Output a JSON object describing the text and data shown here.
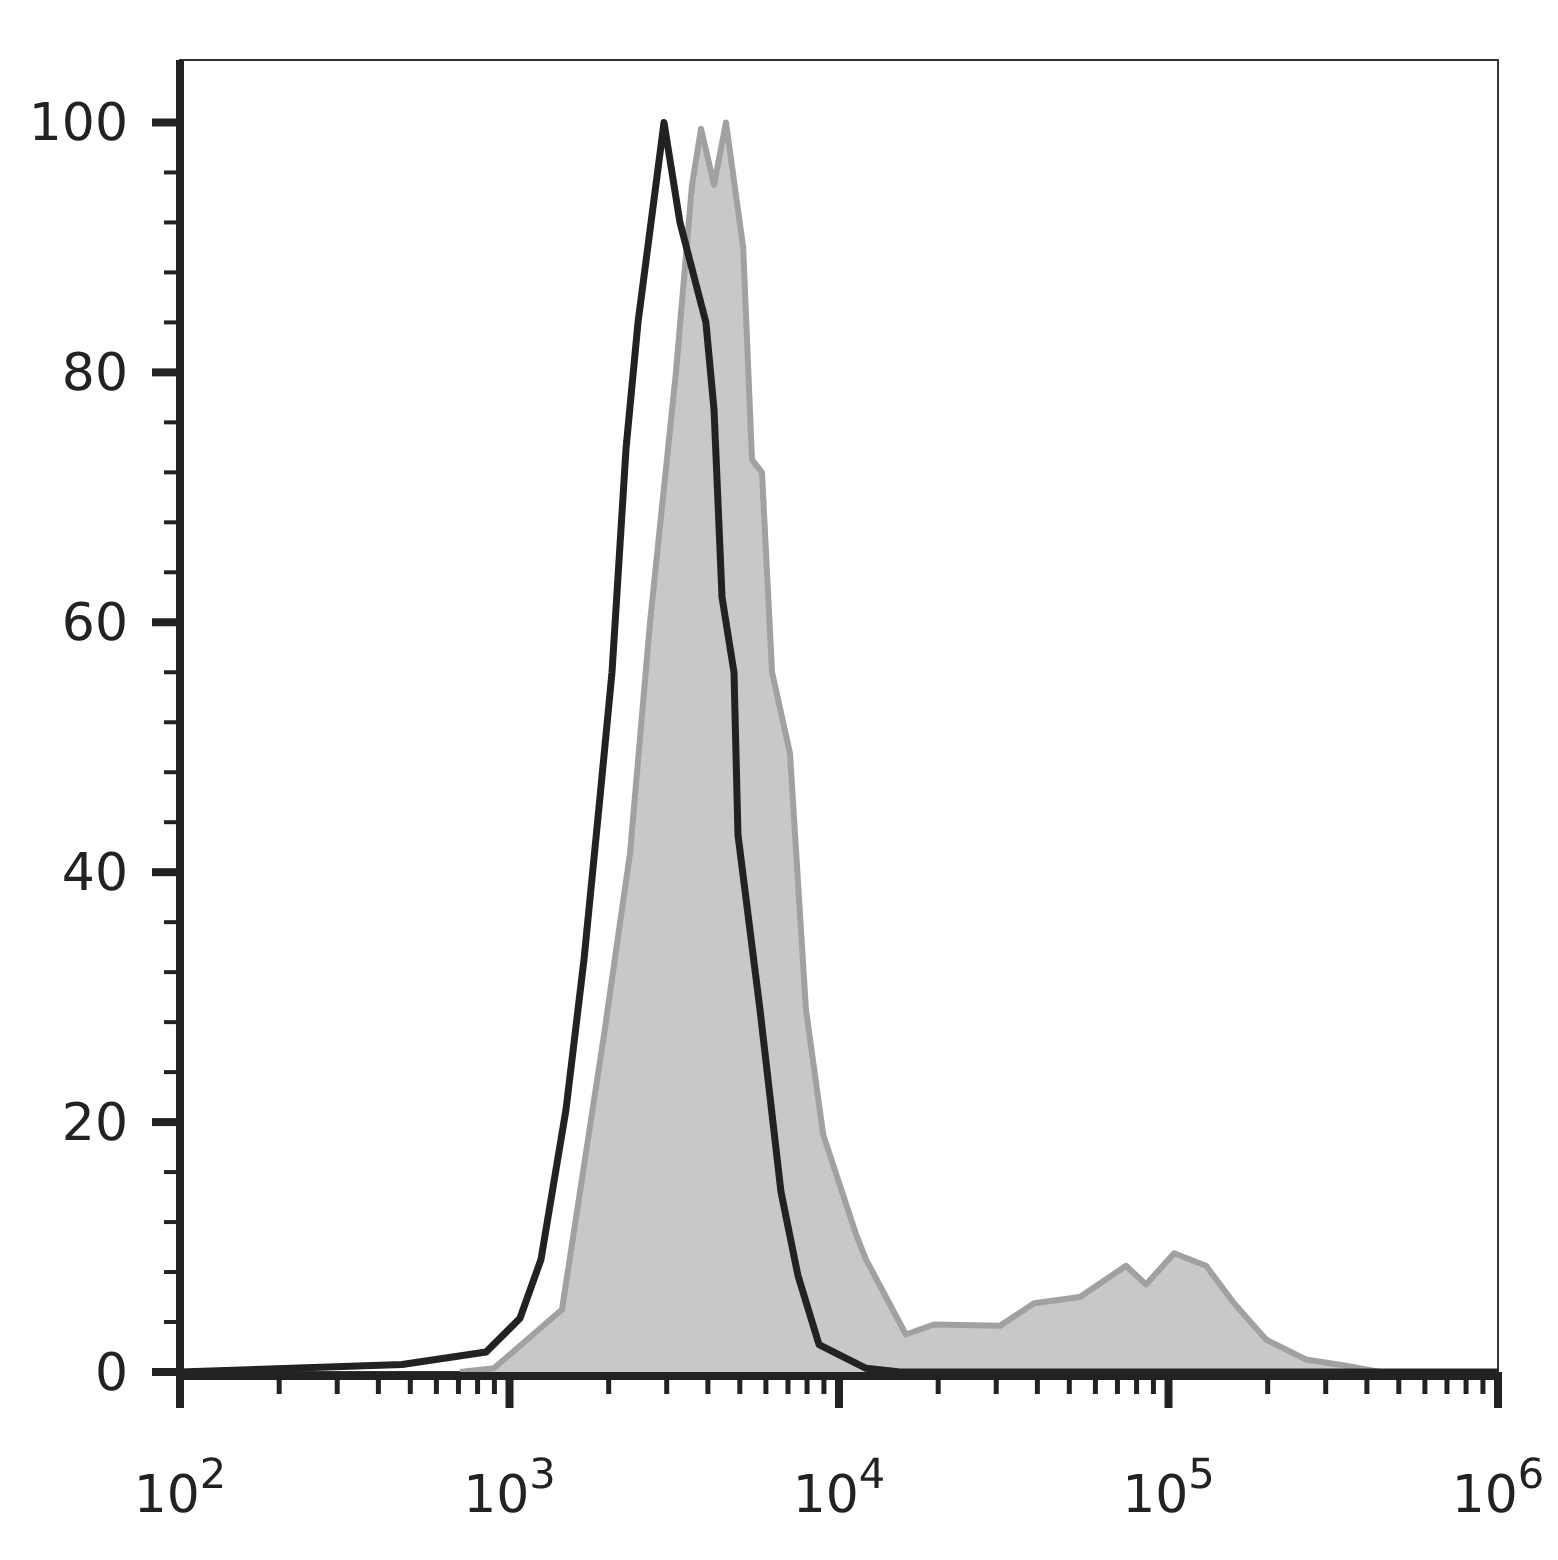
{
  "chart_data": {
    "type": "area",
    "log": "x",
    "grid": false,
    "xlim": [
      100,
      1000000
    ],
    "ylim": [
      0,
      105
    ],
    "xticks": [
      {
        "value": 100,
        "label": "10$^{2}$"
      },
      {
        "value": 200,
        "label": null
      },
      {
        "value": 300,
        "label": null
      },
      {
        "value": 400,
        "label": null
      },
      {
        "value": 500,
        "label": null
      },
      {
        "value": 600,
        "label": null
      },
      {
        "value": 700,
        "label": null
      },
      {
        "value": 800,
        "label": null
      },
      {
        "value": 900,
        "label": null
      },
      {
        "value": 1000,
        "label": "10$^{3}$"
      },
      {
        "value": 2000,
        "label": null
      },
      {
        "value": 3000,
        "label": null
      },
      {
        "value": 4000,
        "label": null
      },
      {
        "value": 5000,
        "label": null
      },
      {
        "value": 6000,
        "label": null
      },
      {
        "value": 7000,
        "label": null
      },
      {
        "value": 8000,
        "label": null
      },
      {
        "value": 9000,
        "label": null
      },
      {
        "value": 10000,
        "label": "10$^{4}$"
      },
      {
        "value": 20000,
        "label": null
      },
      {
        "value": 30000,
        "label": null
      },
      {
        "value": 40000,
        "label": null
      },
      {
        "value": 50000,
        "label": null
      },
      {
        "value": 60000,
        "label": null
      },
      {
        "value": 70000,
        "label": null
      },
      {
        "value": 80000,
        "label": null
      },
      {
        "value": 90000,
        "label": null
      },
      {
        "value": 100000,
        "label": "10$^{5}$"
      },
      {
        "value": 200000,
        "label": null
      },
      {
        "value": 300000,
        "label": null
      },
      {
        "value": 400000,
        "label": null
      },
      {
        "value": 500000,
        "label": null
      },
      {
        "value": 600000,
        "label": null
      },
      {
        "value": 700000,
        "label": null
      },
      {
        "value": 800000,
        "label": null
      },
      {
        "value": 900000,
        "label": null
      },
      {
        "value": 1000000,
        "label": "10$^{6}$"
      }
    ],
    "yticks": [
      0,
      {
        "value": 4,
        "label": null
      },
      {
        "value": 8,
        "label": null
      },
      {
        "value": 12,
        "label": null
      },
      {
        "value": 16,
        "label": null
      },
      20,
      {
        "value": 24,
        "label": null
      },
      {
        "value": 28,
        "label": null
      },
      {
        "value": 32,
        "label": null
      },
      {
        "value": 36,
        "label": null
      },
      40,
      {
        "value": 44,
        "label": null
      },
      {
        "value": 48,
        "label": null
      },
      {
        "value": 52,
        "label": null
      },
      {
        "value": 56,
        "label": null
      },
      60,
      {
        "value": 64,
        "label": null
      },
      {
        "value": 68,
        "label": null
      },
      {
        "value": 72,
        "label": null
      },
      {
        "value": 76,
        "label": null
      },
      80,
      {
        "value": 84,
        "label": null
      },
      {
        "value": 88,
        "label": null
      },
      {
        "value": 92,
        "label": null
      },
      {
        "value": 96,
        "label": null
      },
      100
    ],
    "series": [
      {
        "color": "#c8c8c8",
        "x": [
          708,
          897,
          1443,
          1936,
          2321,
          2670,
          3200,
          3580,
          3813,
          4176,
          4539,
          5119,
          5445,
          5837,
          6264,
          7101,
          7938,
          8956,
          11270,
          12080,
          15960,
          19410,
          30830,
          39080,
          53860,
          74270,
          85470,
          104000,
          130000,
          158100,
          197700,
          261300,
          345600,
          438500
        ],
        "values": [
          0,
          0.3,
          5,
          27,
          41.5,
          60,
          80,
          95,
          99.5,
          95,
          100,
          90,
          73,
          72,
          56,
          49.5,
          29,
          19,
          11,
          9,
          3,
          3.8,
          3.7,
          5.5,
          6,
          8.5,
          7,
          9.5,
          8.5,
          5.5,
          2.6,
          1,
          0.5,
          0
        ]
      },
      {
        "type": "line",
        "color": "#222222",
        "x": [
          100,
          472,
          849,
          1076,
          1246,
          1484,
          1683,
          1882,
          2047,
          2259,
          2455,
          2944,
          3291,
          3945,
          4176,
          4416,
          4801,
          4936,
          5757,
          6668,
          7510,
          8696,
          12080,
          15310,
          1000000
        ],
        "values": [
          0,
          0.6,
          1.6,
          4.3,
          9,
          21,
          33,
          46,
          56,
          74,
          84,
          100,
          92,
          84,
          77,
          62,
          56,
          43,
          29,
          14.4,
          7.7,
          2.2,
          0.3,
          0,
          0
        ]
      }
    ]
  }
}
